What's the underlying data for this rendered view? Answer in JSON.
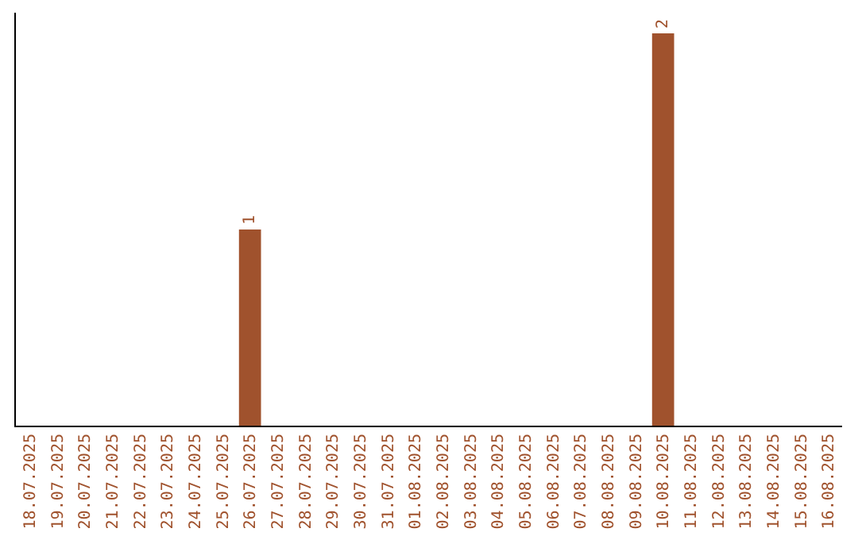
{
  "chart_data": {
    "type": "bar",
    "categories": [
      "18.07.2025",
      "19.07.2025",
      "20.07.2025",
      "21.07.2025",
      "22.07.2025",
      "23.07.2025",
      "24.07.2025",
      "25.07.2025",
      "26.07.2025",
      "27.07.2025",
      "28.07.2025",
      "29.07.2025",
      "30.07.2025",
      "31.07.2025",
      "01.08.2025",
      "02.08.2025",
      "03.08.2025",
      "04.08.2025",
      "05.08.2025",
      "06.08.2025",
      "07.08.2025",
      "08.08.2025",
      "09.08.2025",
      "10.08.2025",
      "11.08.2025",
      "12.08.2025",
      "13.08.2025",
      "14.08.2025",
      "15.08.2025",
      "16.08.2025"
    ],
    "values": [
      0,
      0,
      0,
      0,
      0,
      0,
      0,
      0,
      1,
      0,
      0,
      0,
      0,
      0,
      0,
      0,
      0,
      0,
      0,
      0,
      0,
      0,
      0,
      2,
      0,
      0,
      0,
      0,
      0,
      0
    ],
    "value_labels": [
      null,
      null,
      null,
      null,
      null,
      null,
      null,
      null,
      "1",
      null,
      null,
      null,
      null,
      null,
      null,
      null,
      null,
      null,
      null,
      null,
      null,
      null,
      null,
      "2",
      null,
      null,
      null,
      null,
      null,
      null
    ],
    "color": "#a0522d",
    "grid": false,
    "legend": false
  }
}
